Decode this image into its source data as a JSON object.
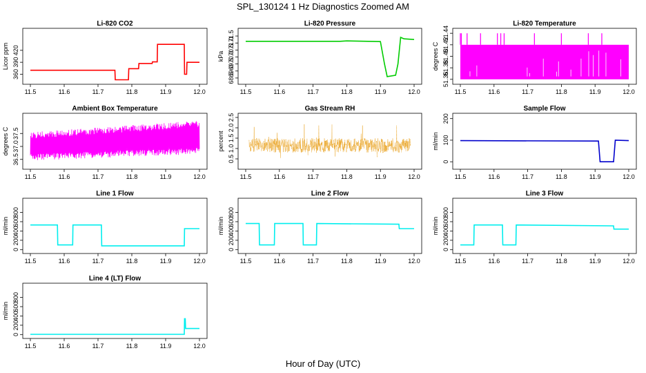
{
  "figure": {
    "title": "SPL_130124  1 Hz Diagnostics Zoomed AM",
    "xlabel": "Hour of Day (UTC)"
  },
  "chart_data": [
    {
      "type": "line",
      "title": "Li-820 CO2",
      "ylabel": "Licor ppm",
      "color": "#ff0000",
      "xlim": [
        11.5,
        12.0
      ],
      "ylim": [
        340,
        470
      ],
      "xticks": [
        "11.5",
        "11.6",
        "11.7",
        "11.8",
        "11.9",
        "12.0"
      ],
      "yticks": [
        "360",
        "390",
        "420"
      ],
      "series": [
        {
          "x": [
            11.5,
            11.75,
            11.751,
            11.79,
            11.791,
            11.82,
            11.821,
            11.86,
            11.861,
            11.875,
            11.876,
            11.955,
            11.956,
            11.962,
            11.963,
            12.0
          ],
          "y": [
            370,
            370,
            346,
            346,
            374,
            374,
            387,
            387,
            391,
            391,
            435,
            435,
            360,
            360,
            390,
            390
          ]
        }
      ]
    },
    {
      "type": "line",
      "title": "Li-820 Pressure",
      "ylabel": "kPa",
      "color": "#00cc00",
      "xlim": [
        11.5,
        12.0
      ],
      "ylim": [
        68.2,
        71.9
      ],
      "xticks": [
        "11.5",
        "11.6",
        "11.7",
        "11.8",
        "11.9",
        "12.0"
      ],
      "yticks": [
        "68.5",
        "69.0",
        "69.5",
        "70.0",
        "70.5",
        "71.0",
        "71.5"
      ],
      "series": [
        {
          "x": [
            11.5,
            11.78,
            11.8,
            11.9,
            11.912,
            11.92,
            11.945,
            11.952,
            11.96,
            11.97,
            12.0
          ],
          "y": [
            71.12,
            71.12,
            71.15,
            71.1,
            69.5,
            68.6,
            68.7,
            69.5,
            71.4,
            71.3,
            71.25
          ]
        }
      ]
    },
    {
      "type": "line",
      "title": "Li-820 Temperature",
      "ylabel": "degrees C",
      "color": "#ff00ff",
      "xlim": [
        11.5,
        12.0
      ],
      "ylim": [
        51.355,
        51.445
      ],
      "xticks": [
        "11.5",
        "11.6",
        "11.7",
        "11.8",
        "11.9",
        "12.0"
      ],
      "yticks": [
        "51.36",
        "51.38",
        "51.40",
        "51.42",
        "51.44"
      ],
      "band": {
        "low": 51.36,
        "high": 51.42
      },
      "spikes": [
        11.5,
        11.503,
        11.52,
        11.56,
        11.61,
        11.62,
        11.63,
        11.72,
        11.8,
        11.88,
        11.92
      ],
      "spike_top": 51.44
    },
    {
      "type": "line",
      "title": "Ambient Box Temperature",
      "ylabel": "degrees C",
      "color": "#ff00ff",
      "xlim": [
        11.5,
        12.0
      ],
      "ylim": [
        36.2,
        38.2
      ],
      "xticks": [
        "11.5",
        "11.6",
        "11.7",
        "11.8",
        "11.9",
        "12.0"
      ],
      "yticks": [
        "36.5",
        "37.0",
        "37.5"
      ],
      "band": {
        "low_start": 36.45,
        "low_end": 36.7,
        "high_start": 37.55,
        "high_end": 38.0
      }
    },
    {
      "type": "scatter",
      "title": "Gas Stream RH",
      "ylabel": "percent",
      "color": "#e69500",
      "xlim": [
        11.5,
        12.0
      ],
      "ylim": [
        0.1,
        2.6
      ],
      "xticks": [
        "11.5",
        "11.6",
        "11.7",
        "11.8",
        "11.9",
        "12.0"
      ],
      "yticks": [
        "0.5",
        "1.0",
        "1.5",
        "2.0",
        "2.5"
      ],
      "band": {
        "low": 0.8,
        "high": 1.5
      }
    },
    {
      "type": "line",
      "title": "Sample Flow",
      "ylabel": "ml/min",
      "color": "#0000cc",
      "xlim": [
        11.5,
        12.0
      ],
      "ylim": [
        -25,
        215
      ],
      "xticks": [
        "11.5",
        "11.6",
        "11.7",
        "11.8",
        "11.9",
        "12.0"
      ],
      "yticks": [
        "0",
        "100",
        "200"
      ],
      "series": [
        {
          "x": [
            11.5,
            11.91,
            11.915,
            11.955,
            11.96,
            12.0
          ],
          "y": [
            98,
            96,
            0,
            0,
            100,
            98
          ]
        }
      ]
    },
    {
      "type": "line",
      "title": "Line 1 Flow",
      "ylabel": "ml/min",
      "color": "#00eeee",
      "xlim": [
        11.5,
        12.0
      ],
      "ylim": [
        -40,
        1060
      ],
      "xticks": [
        "11.5",
        "11.6",
        "11.7",
        "11.8",
        "11.9",
        "12.0"
      ],
      "yticks": [
        "0",
        "200",
        "400",
        "600",
        "800"
      ],
      "series": [
        {
          "x": [
            11.5,
            11.58,
            11.581,
            11.625,
            11.626,
            11.71,
            11.711,
            11.955,
            11.956,
            12.0
          ],
          "y": [
            530,
            530,
            100,
            100,
            530,
            530,
            80,
            80,
            450,
            450
          ]
        }
      ]
    },
    {
      "type": "line",
      "title": "Line 2 Flow",
      "ylabel": "ml/min",
      "color": "#00eeee",
      "xlim": [
        11.5,
        12.0
      ],
      "ylim": [
        -40,
        1060
      ],
      "xticks": [
        "11.5",
        "11.6",
        "11.7",
        "11.8",
        "11.9",
        "12.0"
      ],
      "yticks": [
        "0",
        "200",
        "400",
        "600",
        "800"
      ],
      "series": [
        {
          "x": [
            11.5,
            11.54,
            11.541,
            11.585,
            11.586,
            11.67,
            11.671,
            11.71,
            11.711,
            11.955,
            11.956,
            12.0
          ],
          "y": [
            560,
            560,
            100,
            100,
            560,
            560,
            100,
            100,
            560,
            545,
            450,
            450
          ]
        }
      ]
    },
    {
      "type": "line",
      "title": "Line 3 Flow",
      "ylabel": "ml/min",
      "color": "#00eeee",
      "xlim": [
        11.5,
        12.0
      ],
      "ylim": [
        -40,
        1060
      ],
      "xticks": [
        "11.5",
        "11.6",
        "11.7",
        "11.8",
        "11.9",
        "12.0"
      ],
      "yticks": [
        "0",
        "200",
        "400",
        "600",
        "800"
      ],
      "series": [
        {
          "x": [
            11.5,
            11.54,
            11.541,
            11.625,
            11.626,
            11.665,
            11.666,
            11.955,
            11.956,
            12.0
          ],
          "y": [
            100,
            100,
            530,
            530,
            100,
            100,
            530,
            510,
            440,
            440
          ]
        }
      ]
    },
    {
      "type": "line",
      "title": "Line 4 (LT) Flow",
      "ylabel": "ml/min",
      "color": "#00eeee",
      "xlim": [
        11.5,
        12.0
      ],
      "ylim": [
        -40,
        1060
      ],
      "xticks": [
        "11.5",
        "11.6",
        "11.7",
        "11.8",
        "11.9",
        "12.0"
      ],
      "yticks": [
        "0",
        "200",
        "400",
        "600",
        "800"
      ],
      "series": [
        {
          "x": [
            11.5,
            11.955,
            11.956,
            11.958,
            11.959,
            12.0
          ],
          "y": [
            5,
            5,
            340,
            340,
            130,
            130
          ]
        }
      ]
    }
  ]
}
